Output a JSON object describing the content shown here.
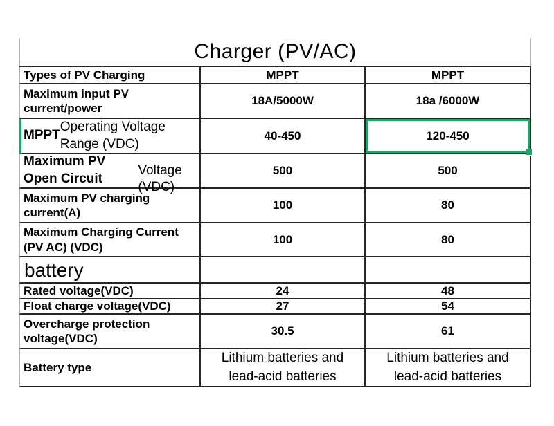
{
  "title": "Charger (PV/AC)",
  "selection": {
    "highlight_color": "#21a366",
    "selected_value": "120-450",
    "selected_row": "MPPT Operating Voltage Range (VDC)"
  },
  "table": {
    "rows": [
      {
        "label_b": "Types of PV Charging",
        "label_r": "",
        "v1": "MPPT",
        "v2": "MPPT"
      },
      {
        "label_b": "Maximum input PV\ncurrent/power",
        "label_r": "",
        "v1": "18A/5000W",
        "v2": "18a /6000W"
      },
      {
        "label_b": "MPPT ",
        "label_r": "Operating Voltage\nRange (VDC)",
        "v1": "40-450",
        "v2": "120-450"
      },
      {
        "label_b": "Maximum PV Open Circuit",
        "label_r": "\nVoltage (VDC)",
        "v1": "500",
        "v2": "500"
      },
      {
        "label_b": "Maximum PV charging\ncurrent(A)",
        "label_r": "",
        "v1": "100",
        "v2": "80"
      },
      {
        "label_b": "Maximum Charging Current\n(PV AC) (VDC)",
        "label_r": "",
        "v1": "100",
        "v2": "80"
      },
      {
        "label_b": "",
        "label_r": "battery",
        "v1": "",
        "v2": ""
      },
      {
        "label_b": "Rated voltage(VDC)",
        "label_r": "",
        "v1": "24",
        "v2": "48"
      },
      {
        "label_b": "Float charge voltage(VDC)",
        "label_r": "",
        "v1": "27",
        "v2": "54"
      },
      {
        "label_b": "Overcharge protection\nvoltage(VDC)",
        "label_r": "",
        "v1": "30.5",
        "v2": "61"
      },
      {
        "label_b": "Battery type",
        "label_r": "",
        "v1": "Lithium batteries and\nlead-acid batteries",
        "v2": "Lithium batteries and\nlead-acid batteries"
      }
    ]
  }
}
